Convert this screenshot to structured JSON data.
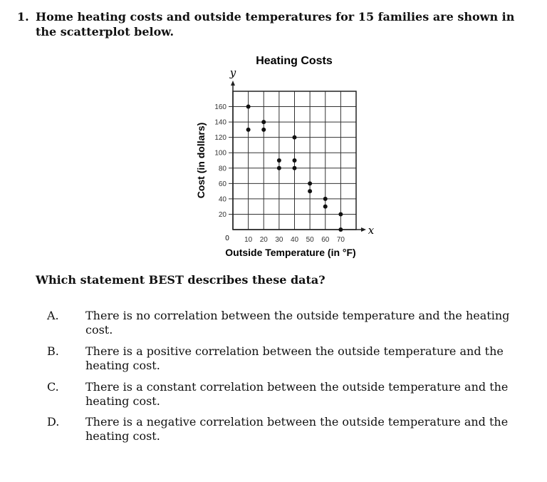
{
  "question": {
    "number": "1.",
    "line1": "Home heating costs and outside temperatures for 15 families are shown in",
    "line2": "the scatterplot below.",
    "prompt": "Which statement BEST describes these data?"
  },
  "options": [
    {
      "letter": "A.",
      "line1": "There is no correlation between the outside temperature and the heating",
      "line2": "cost."
    },
    {
      "letter": "B.",
      "line1": "There is a positive correlation between the outside temperature and the",
      "line2": "heating cost."
    },
    {
      "letter": "C.",
      "line1": "There is a constant correlation between the outside temperature and the",
      "line2": "heating cost."
    },
    {
      "letter": "D.",
      "line1": "There is a negative correlation between the outside temperature and the",
      "line2": "heating cost."
    }
  ],
  "chart_data": {
    "type": "scatter",
    "title": "Heating Costs",
    "xlabel": "Outside Temperature (in °F)",
    "ylabel": "Cost (in dollars)",
    "x_axis_letter": "x",
    "y_axis_letter": "y",
    "origin_label": "0",
    "xlim": [
      0,
      80
    ],
    "ylim": [
      0,
      180
    ],
    "xticks": [
      10,
      20,
      30,
      40,
      50,
      60,
      70
    ],
    "yticks": [
      20,
      40,
      60,
      80,
      100,
      120,
      140,
      160
    ],
    "grid": true,
    "points": [
      {
        "x": 10,
        "y": 160
      },
      {
        "x": 10,
        "y": 130
      },
      {
        "x": 20,
        "y": 140
      },
      {
        "x": 20,
        "y": 130
      },
      {
        "x": 30,
        "y": 90
      },
      {
        "x": 30,
        "y": 80
      },
      {
        "x": 40,
        "y": 120
      },
      {
        "x": 40,
        "y": 90
      },
      {
        "x": 40,
        "y": 80
      },
      {
        "x": 50,
        "y": 60
      },
      {
        "x": 50,
        "y": 50
      },
      {
        "x": 60,
        "y": 40
      },
      {
        "x": 60,
        "y": 30
      },
      {
        "x": 70,
        "y": 20
      },
      {
        "x": 70,
        "y": 0
      }
    ]
  }
}
